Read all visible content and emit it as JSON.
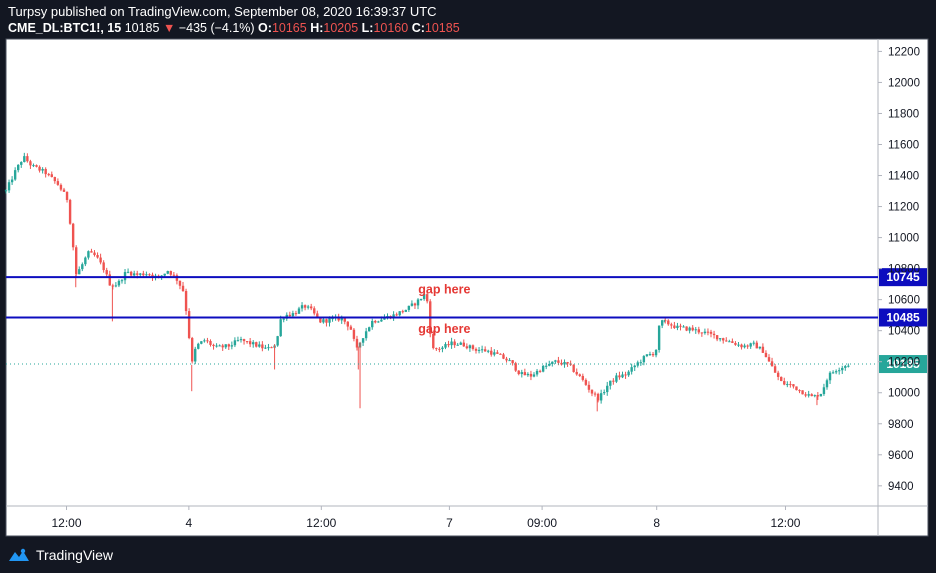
{
  "header": {
    "publisher_line": "Turpsy published on TradingView.com, September 08, 2020 16:39:37 UTC",
    "symbol": "CME_DL:BTC1!, 15",
    "last_price": "10185",
    "change_arrow": "▼",
    "change": "−435 (−4.1%)",
    "open_label": "O:",
    "open": "10165",
    "high_label": "H:",
    "high": "10205",
    "low_label": "L:",
    "low": "10160",
    "close_label": "C:",
    "close": "10185"
  },
  "footer": {
    "brand": "TradingView"
  },
  "colors": {
    "background": "#131722",
    "plot_background": "#ffffff",
    "up_candle": "#26a69a",
    "down_candle": "#ef5350",
    "level_line": "#0d0dbf",
    "annotation": "#e53935",
    "last_price_badge": "#26a69a"
  },
  "chart_data": {
    "type": "line",
    "subtype": "candlestick",
    "title": "",
    "xlabel": "",
    "ylabel": "",
    "ylim": [
      9270,
      12280
    ],
    "y_ticks": [
      12200,
      12000,
      11800,
      11600,
      11400,
      11200,
      11000,
      10800,
      10600,
      10400,
      10200,
      10000,
      9800,
      9600,
      9400
    ],
    "x_ticks": [
      "12:00",
      "4",
      "12:00",
      "7",
      "09:00",
      "8",
      "12:00"
    ],
    "x_tick_positions": [
      0.0694,
      0.2097,
      0.3616,
      0.5085,
      0.6148,
      0.7462,
      0.8939
    ],
    "horizontal_levels": [
      {
        "value": 10745,
        "label": "10745"
      },
      {
        "value": 10485,
        "label": "10485"
      }
    ],
    "last_price": {
      "value": 10185,
      "label": "10185"
    },
    "annotations": [
      {
        "text": "gap here",
        "x": 0.482,
        "price": 10665
      },
      {
        "text": "gap here",
        "x": 0.482,
        "price": 10410
      }
    ],
    "price_path": [
      [
        0.0,
        11300
      ],
      [
        0.01,
        11420
      ],
      [
        0.02,
        11520
      ],
      [
        0.03,
        11460
      ],
      [
        0.045,
        11420
      ],
      [
        0.06,
        11340
      ],
      [
        0.07,
        11250
      ],
      [
        0.076,
        11000
      ],
      [
        0.08,
        10760
      ],
      [
        0.086,
        10810
      ],
      [
        0.094,
        10900
      ],
      [
        0.103,
        10880
      ],
      [
        0.112,
        10800
      ],
      [
        0.12,
        10690
      ],
      [
        0.128,
        10700
      ],
      [
        0.138,
        10780
      ],
      [
        0.15,
        10760
      ],
      [
        0.162,
        10770
      ],
      [
        0.175,
        10740
      ],
      [
        0.186,
        10790
      ],
      [
        0.196,
        10730
      ],
      [
        0.203,
        10660
      ],
      [
        0.208,
        10480
      ],
      [
        0.213,
        10180
      ],
      [
        0.218,
        10300
      ],
      [
        0.228,
        10340
      ],
      [
        0.24,
        10290
      ],
      [
        0.255,
        10300
      ],
      [
        0.268,
        10340
      ],
      [
        0.285,
        10310
      ],
      [
        0.3,
        10280
      ],
      [
        0.31,
        10320
      ],
      [
        0.315,
        10470
      ],
      [
        0.32,
        10500
      ],
      [
        0.33,
        10510
      ],
      [
        0.342,
        10560
      ],
      [
        0.35,
        10530
      ],
      [
        0.36,
        10460
      ],
      [
        0.372,
        10470
      ],
      [
        0.385,
        10480
      ],
      [
        0.395,
        10420
      ],
      [
        0.402,
        10270
      ],
      [
        0.407,
        10340
      ],
      [
        0.412,
        10390
      ],
      [
        0.42,
        10460
      ],
      [
        0.432,
        10480
      ],
      [
        0.445,
        10500
      ],
      [
        0.46,
        10540
      ],
      [
        0.47,
        10580
      ],
      [
        0.478,
        10620
      ],
      [
        0.482,
        10650
      ],
      [
        0.486,
        10410
      ],
      [
        0.49,
        10280
      ],
      [
        0.5,
        10290
      ],
      [
        0.512,
        10320
      ],
      [
        0.525,
        10310
      ],
      [
        0.538,
        10280
      ],
      [
        0.552,
        10270
      ],
      [
        0.565,
        10240
      ],
      [
        0.578,
        10200
      ],
      [
        0.59,
        10120
      ],
      [
        0.602,
        10110
      ],
      [
        0.615,
        10160
      ],
      [
        0.63,
        10200
      ],
      [
        0.645,
        10180
      ],
      [
        0.66,
        10090
      ],
      [
        0.672,
        10000
      ],
      [
        0.68,
        9960
      ],
      [
        0.69,
        10050
      ],
      [
        0.7,
        10100
      ],
      [
        0.712,
        10120
      ],
      [
        0.722,
        10180
      ],
      [
        0.735,
        10240
      ],
      [
        0.745,
        10260
      ],
      [
        0.75,
        10460
      ],
      [
        0.758,
        10450
      ],
      [
        0.77,
        10420
      ],
      [
        0.785,
        10410
      ],
      [
        0.8,
        10390
      ],
      [
        0.815,
        10360
      ],
      [
        0.83,
        10330
      ],
      [
        0.845,
        10300
      ],
      [
        0.858,
        10310
      ],
      [
        0.868,
        10270
      ],
      [
        0.875,
        10200
      ],
      [
        0.882,
        10130
      ],
      [
        0.89,
        10060
      ],
      [
        0.9,
        10050
      ],
      [
        0.915,
        10000
      ],
      [
        0.925,
        9970
      ],
      [
        0.935,
        10000
      ],
      [
        0.943,
        10110
      ],
      [
        0.952,
        10150
      ],
      [
        0.96,
        10170
      ],
      [
        0.967,
        10185
      ]
    ],
    "spikes": [
      {
        "x": 0.08,
        "price": 10680
      },
      {
        "x": 0.122,
        "price": 10460
      },
      {
        "x": 0.213,
        "price": 10010
      },
      {
        "x": 0.308,
        "price": 10150
      },
      {
        "x": 0.404,
        "price": 10150
      },
      {
        "x": 0.406,
        "price": 9900
      },
      {
        "x": 0.678,
        "price": 9880
      },
      {
        "x": 0.755,
        "price": 10470
      },
      {
        "x": 0.93,
        "price": 9920
      }
    ]
  }
}
